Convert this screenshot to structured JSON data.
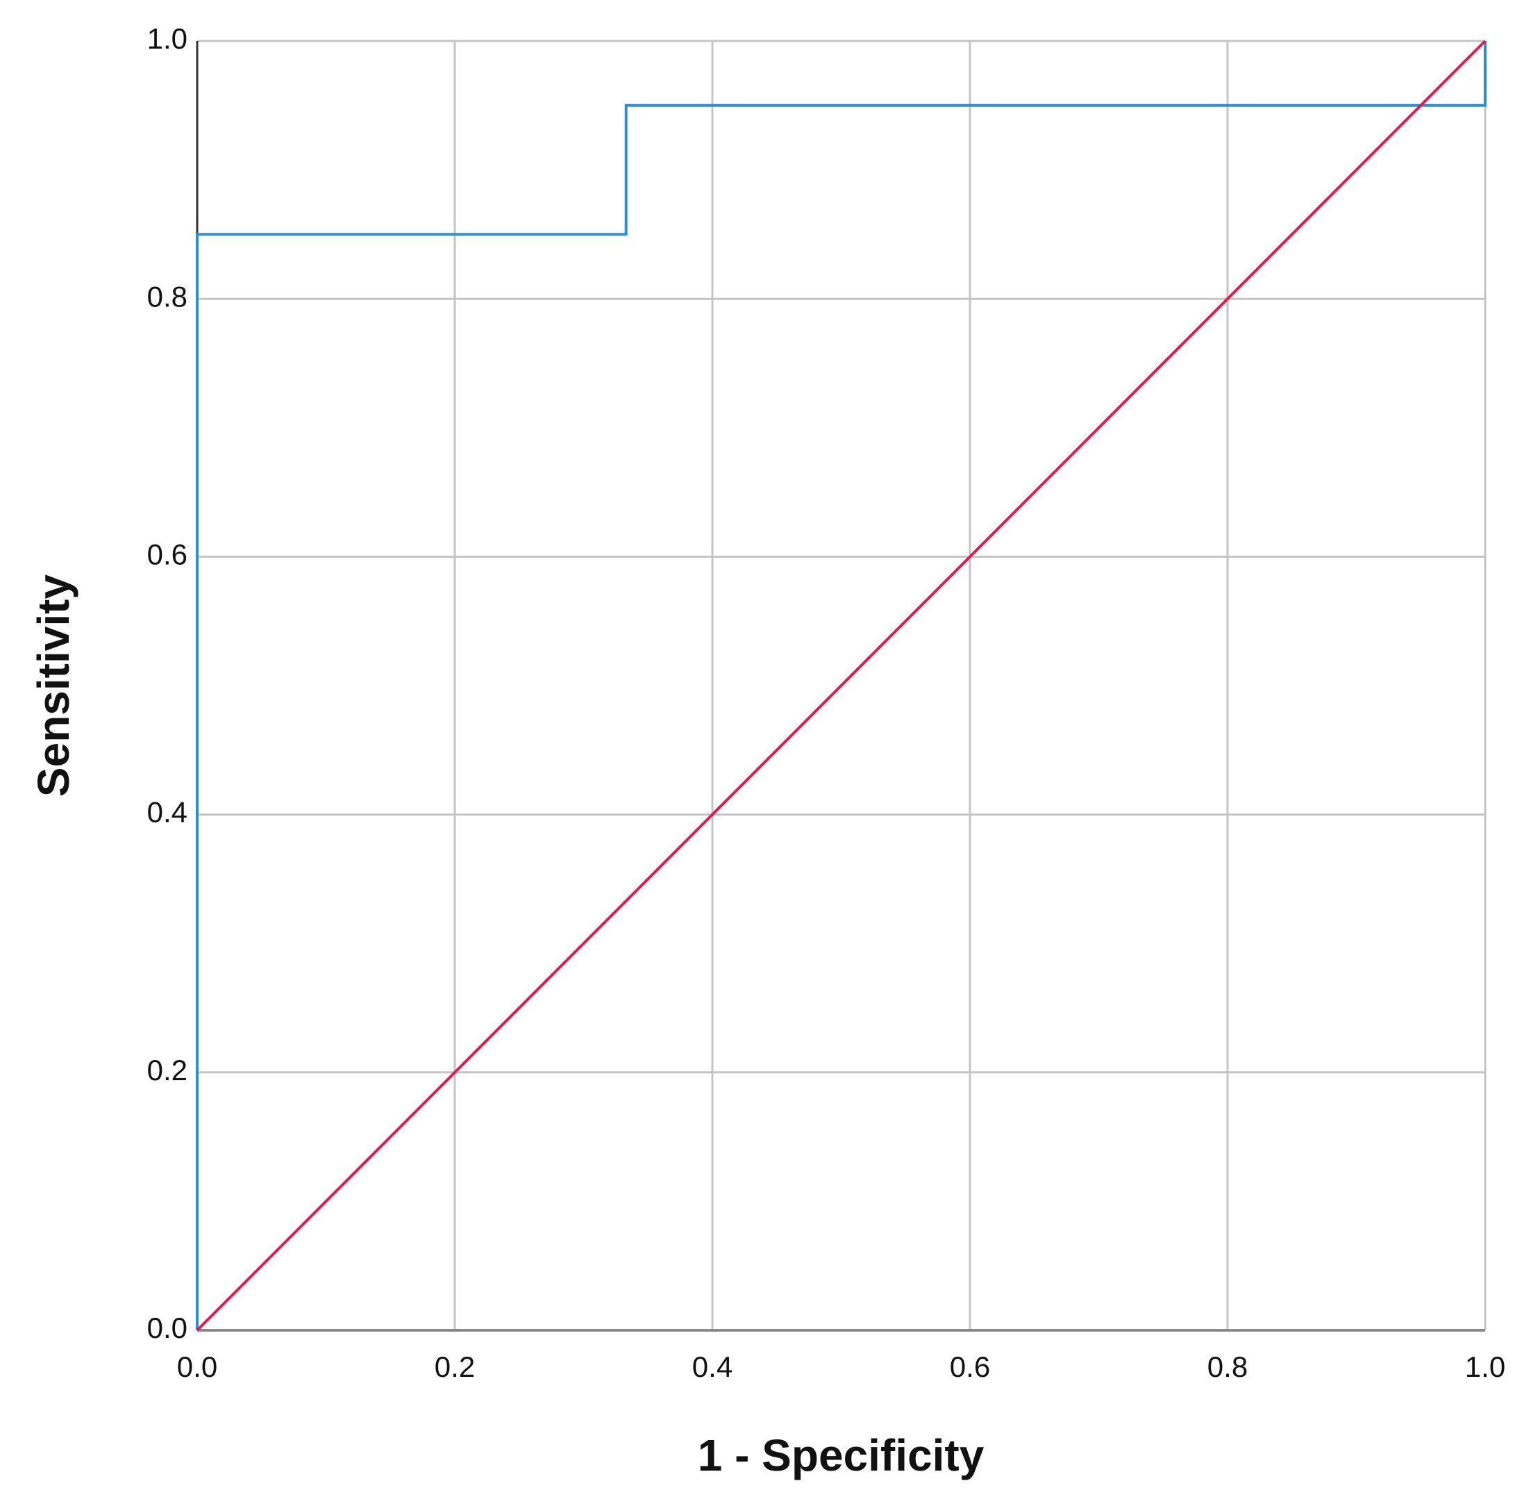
{
  "chart_data": {
    "type": "line",
    "x_label": "1 - Specificity",
    "y_label": "Sensitivity",
    "xlim": [
      0,
      1
    ],
    "ylim": [
      0,
      1
    ],
    "xticks": [
      {
        "value": 0,
        "label": "0.0"
      },
      0.2,
      0.4,
      0.6,
      0.8,
      {
        "value": 1,
        "label": "1.0"
      }
    ],
    "yticks": [
      {
        "value": 0,
        "label": "0.0"
      },
      0.2,
      0.4,
      0.6,
      0.8,
      {
        "value": 1,
        "label": "1.0"
      }
    ],
    "grid": true,
    "series": [
      {
        "color": "#2a8fd9",
        "x": [
          0,
          0,
          0.333,
          0.333,
          1,
          1
        ],
        "values": [
          0,
          0.85,
          0.85,
          0.95,
          0.95,
          1
        ]
      },
      {
        "color": "#e8184c",
        "x": [
          0,
          1
        ],
        "values": [
          0,
          1
        ]
      }
    ]
  }
}
